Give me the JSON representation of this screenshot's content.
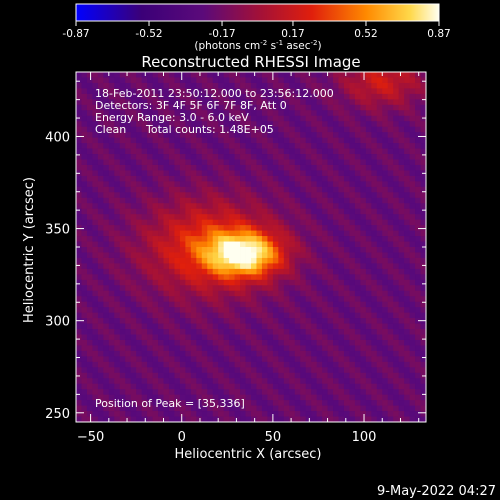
{
  "colorbar": {
    "ticks": [
      "-0.87",
      "-0.52",
      "-0.17",
      "0.17",
      "0.52",
      "0.87"
    ],
    "tick_values": [
      -0.87,
      -0.52,
      -0.17,
      0.17,
      0.52,
      0.87
    ],
    "range": [
      -0.87,
      0.87
    ],
    "units_label": "(photons cm",
    "units_exp1": "-2",
    "units_mid": " s",
    "units_exp2": "-1",
    "units_mid2": " asec",
    "units_exp3": "-2",
    "units_close": ")"
  },
  "chart_data": {
    "type": "heatmap",
    "title": "Reconstructed RHESSI Image",
    "xlabel": "Heliocentric X (arcsec)",
    "ylabel": "Heliocentric Y (arcsec)",
    "xlim": [
      -58,
      134
    ],
    "ylim": [
      245,
      435
    ],
    "x_ticks": [
      -50,
      0,
      50,
      100
    ],
    "x_tick_labels": [
      "−50",
      "0",
      "50",
      "100"
    ],
    "y_ticks": [
      250,
      300,
      350,
      400
    ],
    "y_tick_labels": [
      "250",
      "300",
      "350",
      "400"
    ],
    "peak": [
      35,
      336
    ],
    "value_range": [
      -0.87,
      0.87
    ],
    "sources": [
      {
        "x": 35,
        "y": 336,
        "sx": 20,
        "sy": 12,
        "amp": 0.87
      },
      {
        "x": 15,
        "y": 340,
        "sx": 35,
        "sy": 25,
        "amp": 0.55
      },
      {
        "x": 110,
        "y": 430,
        "sx": 22,
        "sy": 14,
        "amp": 0.4
      }
    ]
  },
  "annotations": {
    "time_range": "18-Feb-2011 23:50:12.000 to 23:56:12.000",
    "detectors": "Detectors: 3F 4F 5F 6F 7F 8F, Att 0",
    "energy": "Energy Range: 3.0 - 6.0 keV",
    "clean": "Clean",
    "total_counts": "Total counts: 1.48E+05",
    "peak_position": "Position of Peak = [35,336]"
  },
  "footer": {
    "date": "9-May-2022 04:27"
  },
  "colors": {
    "background": "#000000",
    "text": "#ffffff"
  }
}
